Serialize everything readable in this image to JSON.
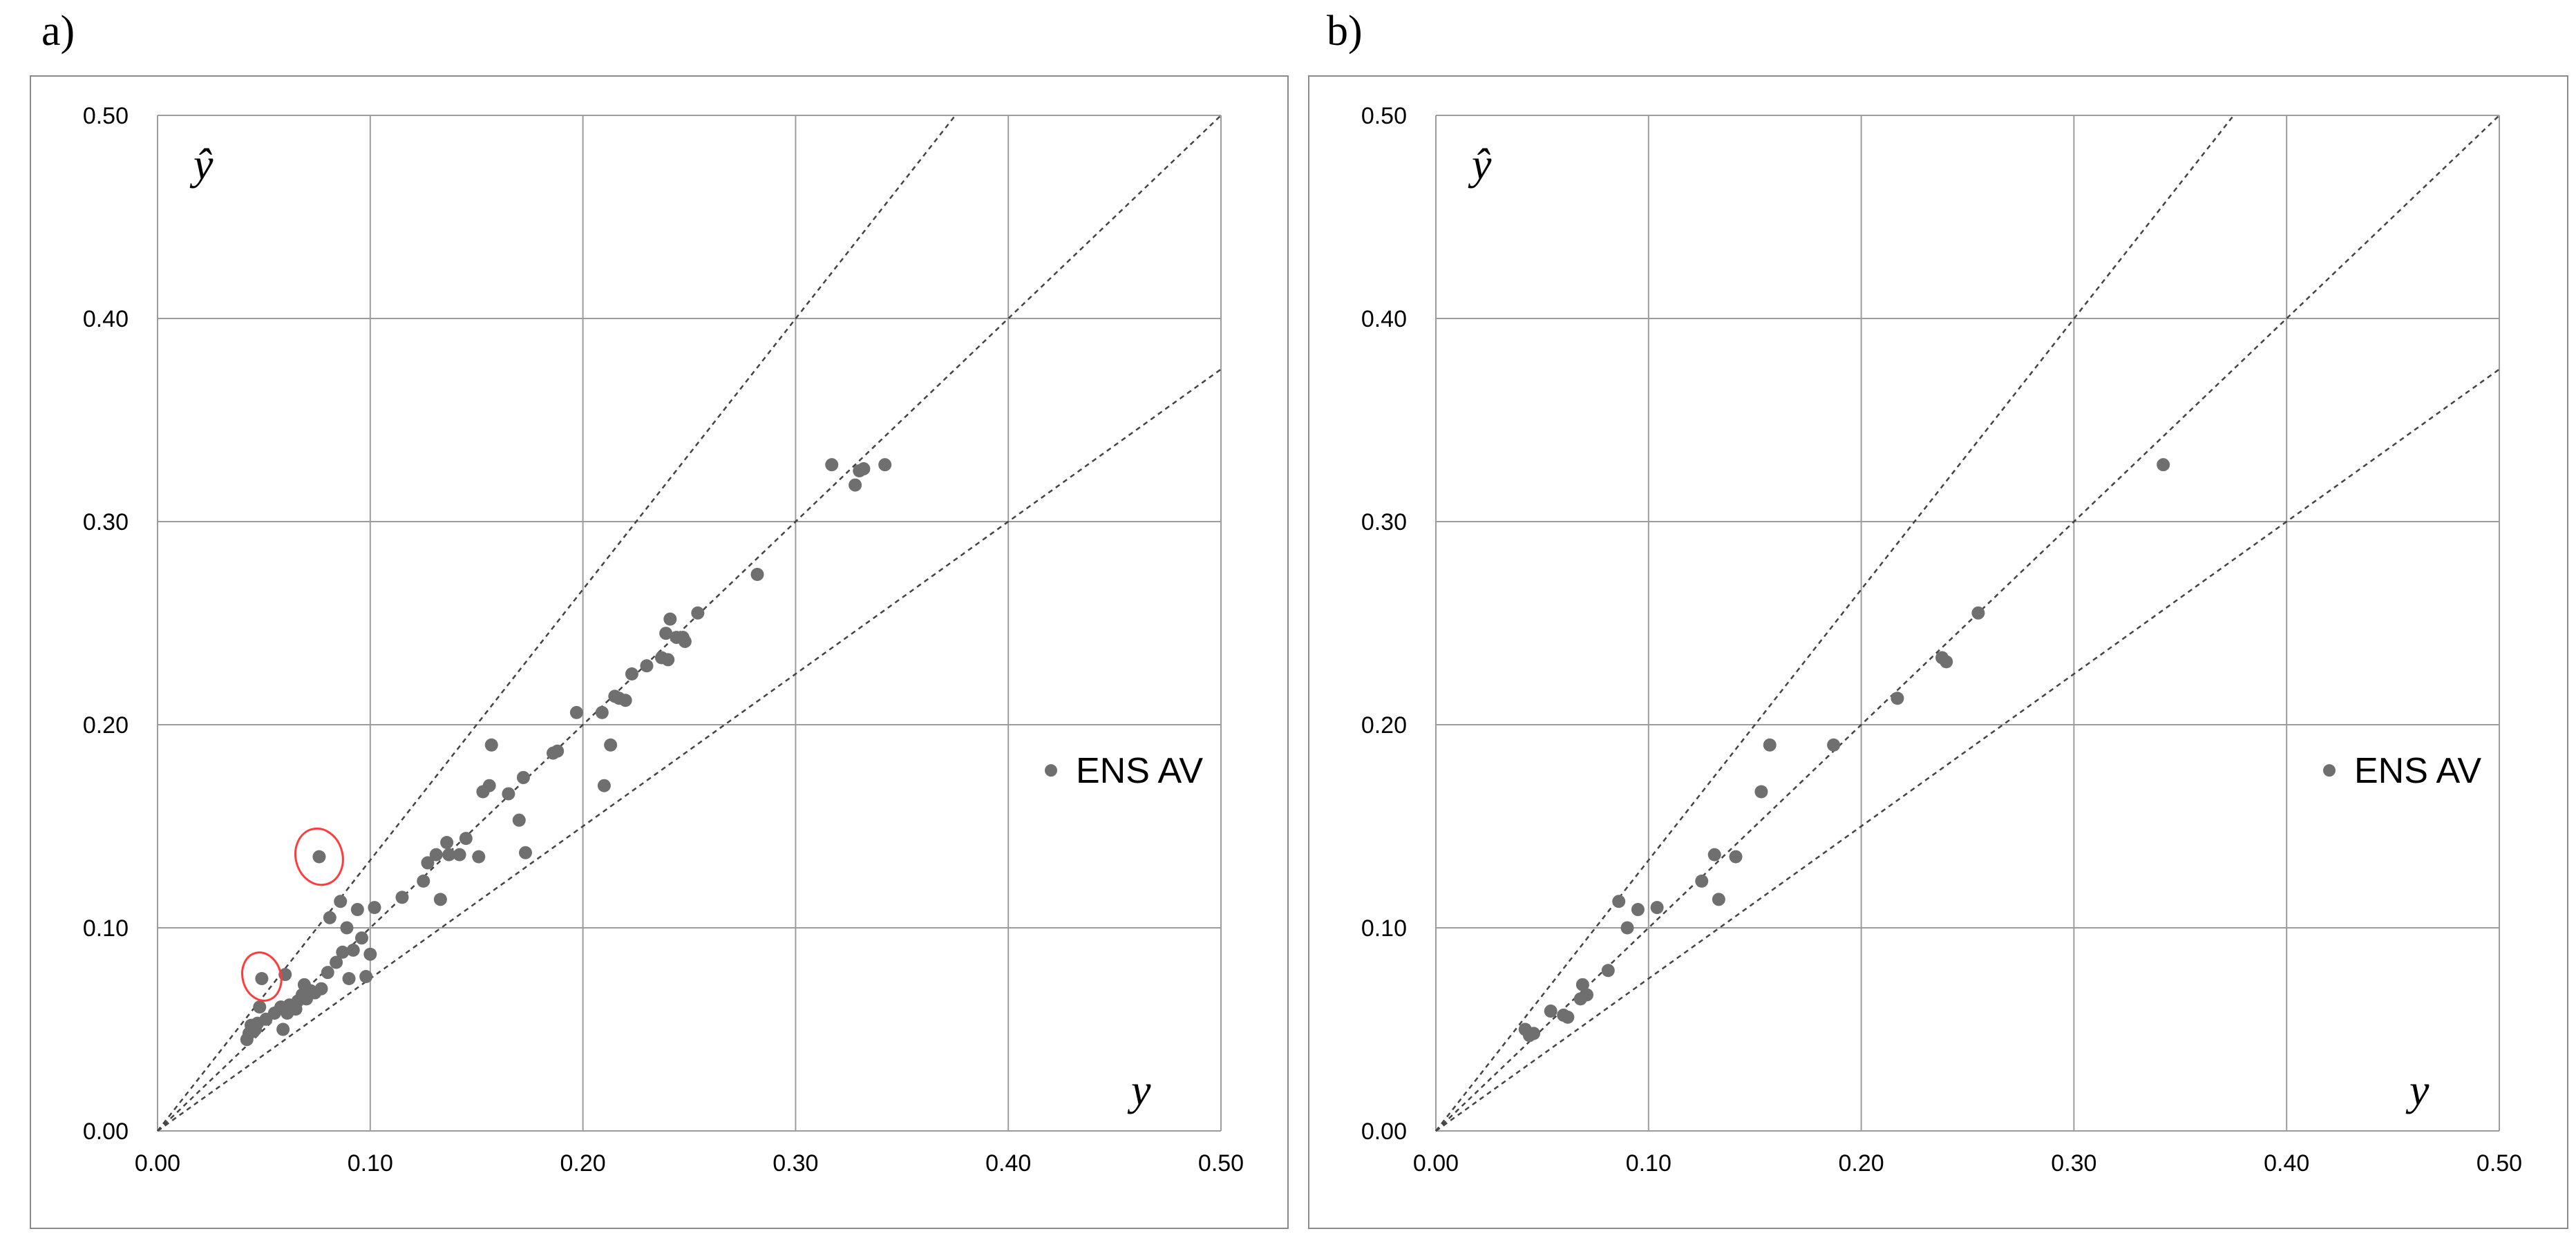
{
  "panels": [
    {
      "letter": "a)"
    },
    {
      "letter": "b)"
    }
  ],
  "colors": {
    "point": "#6f6f6f",
    "grid": "#9c9c9c",
    "frame": "#8a8a8a",
    "reference_lines": "#444444",
    "highlight": "#ff3b3b"
  },
  "chart_data": [
    {
      "type": "scatter",
      "title": "",
      "xlabel": "y",
      "ylabel": "ŷ",
      "xlim": [
        0,
        0.5
      ],
      "ylim": [
        0,
        0.5
      ],
      "x_ticks": [
        "0.00",
        "0.10",
        "0.20",
        "0.30",
        "0.40",
        "0.50"
      ],
      "y_ticks": [
        "0.00",
        "0.10",
        "0.20",
        "0.30",
        "0.40",
        "0.50"
      ],
      "grid": true,
      "legend": {
        "position": "right-middle",
        "entries": [
          "ENS AV"
        ]
      },
      "reference_lines": [
        {
          "slope": 1.333
        },
        {
          "slope": 1.0
        },
        {
          "slope": 0.75
        }
      ],
      "series": [
        {
          "name": "ENS AV",
          "points": [
            [
              0.042,
              0.045
            ],
            [
              0.043,
              0.048
            ],
            [
              0.044,
              0.052
            ],
            [
              0.045,
              0.049
            ],
            [
              0.046,
              0.05
            ],
            [
              0.047,
              0.053
            ],
            [
              0.048,
              0.061
            ],
            [
              0.049,
              0.075
            ],
            [
              0.051,
              0.055
            ],
            [
              0.055,
              0.058
            ],
            [
              0.058,
              0.061
            ],
            [
              0.059,
              0.05
            ],
            [
              0.06,
              0.077
            ],
            [
              0.061,
              0.058
            ],
            [
              0.062,
              0.062
            ],
            [
              0.065,
              0.06
            ],
            [
              0.066,
              0.064
            ],
            [
              0.068,
              0.067
            ],
            [
              0.069,
              0.072
            ],
            [
              0.07,
              0.065
            ],
            [
              0.072,
              0.069
            ],
            [
              0.074,
              0.068
            ],
            [
              0.076,
              0.135
            ],
            [
              0.077,
              0.07
            ],
            [
              0.08,
              0.078
            ],
            [
              0.081,
              0.105
            ],
            [
              0.084,
              0.083
            ],
            [
              0.086,
              0.113
            ],
            [
              0.087,
              0.088
            ],
            [
              0.089,
              0.1
            ],
            [
              0.09,
              0.075
            ],
            [
              0.092,
              0.089
            ],
            [
              0.094,
              0.109
            ],
            [
              0.096,
              0.095
            ],
            [
              0.098,
              0.076
            ],
            [
              0.1,
              0.087
            ],
            [
              0.102,
              0.11
            ],
            [
              0.115,
              0.115
            ],
            [
              0.125,
              0.123
            ],
            [
              0.127,
              0.132
            ],
            [
              0.131,
              0.136
            ],
            [
              0.133,
              0.114
            ],
            [
              0.136,
              0.142
            ],
            [
              0.137,
              0.136
            ],
            [
              0.142,
              0.136
            ],
            [
              0.145,
              0.144
            ],
            [
              0.151,
              0.135
            ],
            [
              0.153,
              0.167
            ],
            [
              0.156,
              0.17
            ],
            [
              0.157,
              0.19
            ],
            [
              0.165,
              0.166
            ],
            [
              0.17,
              0.153
            ],
            [
              0.172,
              0.174
            ],
            [
              0.173,
              0.137
            ],
            [
              0.186,
              0.186
            ],
            [
              0.188,
              0.187
            ],
            [
              0.197,
              0.206
            ],
            [
              0.209,
              0.206
            ],
            [
              0.21,
              0.17
            ],
            [
              0.213,
              0.19
            ],
            [
              0.215,
              0.214
            ],
            [
              0.217,
              0.213
            ],
            [
              0.22,
              0.212
            ],
            [
              0.223,
              0.225
            ],
            [
              0.23,
              0.229
            ],
            [
              0.237,
              0.233
            ],
            [
              0.239,
              0.245
            ],
            [
              0.24,
              0.232
            ],
            [
              0.241,
              0.252
            ],
            [
              0.244,
              0.243
            ],
            [
              0.247,
              0.243
            ],
            [
              0.248,
              0.241
            ],
            [
              0.254,
              0.255
            ],
            [
              0.282,
              0.274
            ],
            [
              0.317,
              0.328
            ],
            [
              0.328,
              0.318
            ],
            [
              0.33,
              0.325
            ],
            [
              0.332,
              0.326
            ],
            [
              0.342,
              0.328
            ]
          ]
        }
      ],
      "annotations": [
        {
          "type": "ellipse",
          "center": [
            0.076,
            0.135
          ],
          "rx": 0.011,
          "ry": 0.014
        },
        {
          "type": "ellipse",
          "center": [
            0.049,
            0.076
          ],
          "rx": 0.009,
          "ry": 0.012
        }
      ]
    },
    {
      "type": "scatter",
      "title": "",
      "xlabel": "y",
      "ylabel": "ŷ",
      "xlim": [
        0,
        0.5
      ],
      "ylim": [
        0,
        0.5
      ],
      "x_ticks": [
        "0.00",
        "0.10",
        "0.20",
        "0.30",
        "0.40",
        "0.50"
      ],
      "y_ticks": [
        "0.00",
        "0.10",
        "0.20",
        "0.30",
        "0.40",
        "0.50"
      ],
      "grid": true,
      "legend": {
        "position": "right-middle",
        "entries": [
          "ENS AV"
        ]
      },
      "reference_lines": [
        {
          "slope": 1.333
        },
        {
          "slope": 1.0
        },
        {
          "slope": 0.75
        }
      ],
      "series": [
        {
          "name": "ENS AV",
          "points": [
            [
              0.042,
              0.05
            ],
            [
              0.044,
              0.047
            ],
            [
              0.046,
              0.048
            ],
            [
              0.054,
              0.059
            ],
            [
              0.06,
              0.057
            ],
            [
              0.062,
              0.056
            ],
            [
              0.068,
              0.065
            ],
            [
              0.069,
              0.072
            ],
            [
              0.071,
              0.067
            ],
            [
              0.081,
              0.079
            ],
            [
              0.086,
              0.113
            ],
            [
              0.09,
              0.1
            ],
            [
              0.095,
              0.109
            ],
            [
              0.104,
              0.11
            ],
            [
              0.125,
              0.123
            ],
            [
              0.131,
              0.136
            ],
            [
              0.133,
              0.114
            ],
            [
              0.141,
              0.135
            ],
            [
              0.153,
              0.167
            ],
            [
              0.157,
              0.19
            ],
            [
              0.187,
              0.19
            ],
            [
              0.217,
              0.213
            ],
            [
              0.238,
              0.233
            ],
            [
              0.24,
              0.231
            ],
            [
              0.255,
              0.255
            ],
            [
              0.342,
              0.328
            ]
          ]
        }
      ],
      "annotations": []
    }
  ]
}
